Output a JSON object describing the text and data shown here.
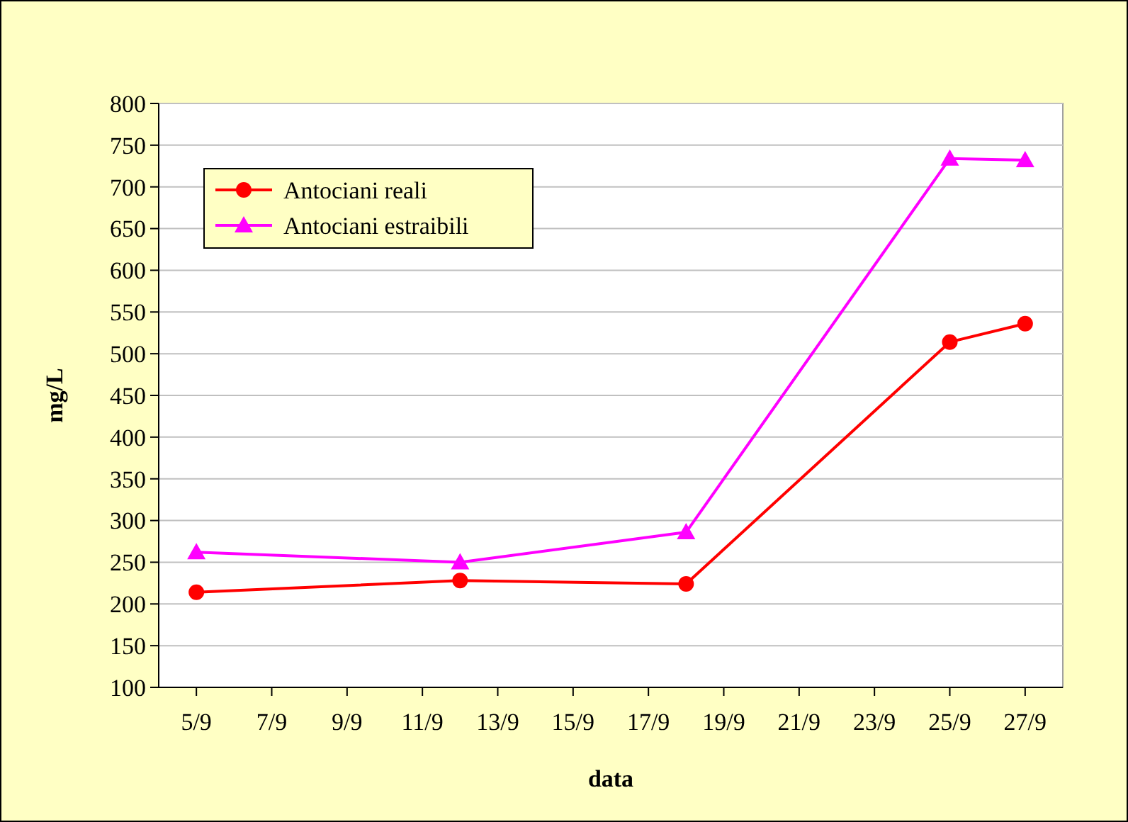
{
  "chart_data": {
    "type": "line",
    "xlabel": "data",
    "ylabel": "mg/L",
    "x": [
      "--09-05",
      "--09-12",
      "--09-18",
      "--09-25",
      "--09-27"
    ],
    "series": [
      {
        "name": "Antociani reali",
        "color": "#ff0000",
        "marker": "circle",
        "values": [
          214,
          228,
          224,
          514,
          536
        ]
      },
      {
        "name": "Antociani estraibili",
        "color": "#ff00ff",
        "marker": "triangle",
        "values": [
          262,
          250,
          286,
          734,
          732
        ]
      }
    ],
    "xlim": [
      "--09-04",
      "--09-28"
    ],
    "xticks": [
      {
        "value": "--09-05",
        "label": "5/9"
      },
      {
        "value": "--09-07",
        "label": "7/9"
      },
      {
        "value": "--09-09",
        "label": "9/9"
      },
      {
        "value": "--09-11",
        "label": "11/9"
      },
      {
        "value": "--09-13",
        "label": "13/9"
      },
      {
        "value": "--09-15",
        "label": "15/9"
      },
      {
        "value": "--09-17",
        "label": "17/9"
      },
      {
        "value": "--09-19",
        "label": "19/9"
      },
      {
        "value": "--09-21",
        "label": "21/9"
      },
      {
        "value": "--09-23",
        "label": "23/9"
      },
      {
        "value": "--09-25",
        "label": "25/9"
      },
      {
        "value": "--09-27",
        "label": "27/9"
      }
    ],
    "ylim": [
      100,
      800
    ],
    "yticks": [
      100,
      150,
      200,
      250,
      300,
      350,
      400,
      450,
      500,
      550,
      600,
      650,
      700,
      750,
      800
    ],
    "grid": "y",
    "legend": "top left",
    "line_style": "solid"
  }
}
